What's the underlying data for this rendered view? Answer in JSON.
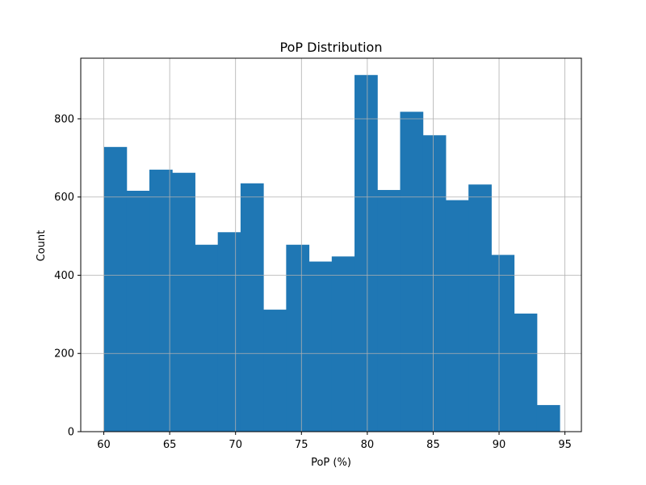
{
  "chart_data": {
    "type": "bar",
    "title": "PoP Distribution",
    "xlabel": "PoP (%)",
    "ylabel": "Count",
    "xlim": [
      58.25,
      96.25
    ],
    "ylim": [
      0,
      955
    ],
    "xticks": [
      60,
      65,
      70,
      75,
      80,
      85,
      90,
      95
    ],
    "yticks": [
      0,
      200,
      400,
      600,
      800
    ],
    "grid": true,
    "bin_edges": [
      60.0,
      61.73,
      63.46,
      65.19,
      66.92,
      68.65,
      70.38,
      72.11,
      73.84,
      75.57,
      77.3,
      79.03,
      80.76,
      82.49,
      84.22,
      85.95,
      87.68,
      89.41,
      91.14,
      92.87,
      94.6
    ],
    "values": [
      728,
      616,
      670,
      662,
      478,
      510,
      635,
      312,
      478,
      435,
      448,
      912,
      618,
      818,
      758,
      592,
      632,
      452,
      302,
      68
    ],
    "bar_color": "#1f77b4"
  }
}
